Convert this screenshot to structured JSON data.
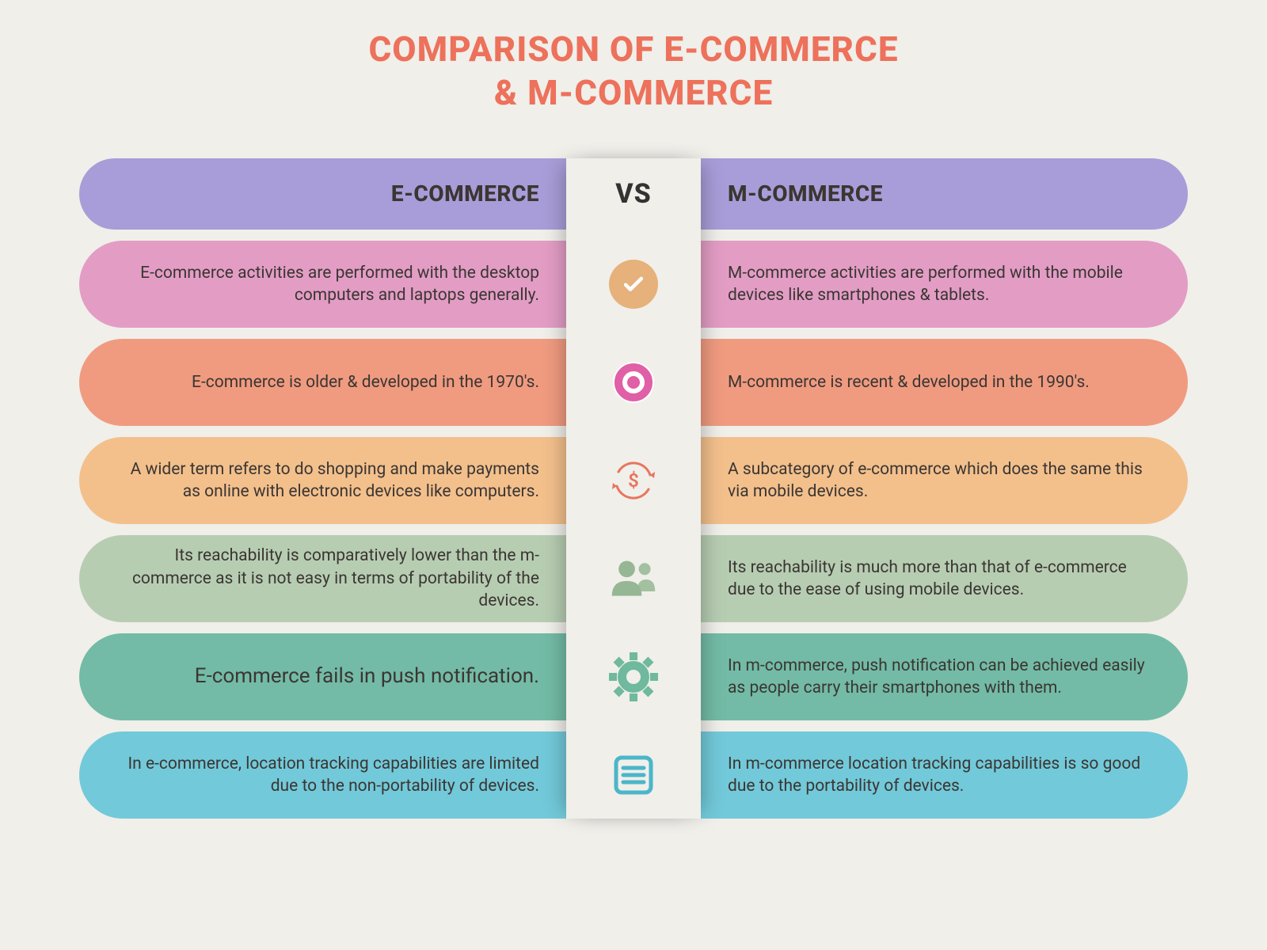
{
  "type": "infographic",
  "background_color": "#f0efea",
  "title": {
    "line1": "COMPARISON OF E-COMMERCE",
    "line2": "& M-COMMERCE",
    "color": "#ed715b",
    "fontsize": 44
  },
  "center": {
    "vs_label": "VS",
    "strip_bg": "#f0efea",
    "shadow": "rgba(0,0,0,.25)"
  },
  "header": {
    "left_label": "E-COMMERCE",
    "right_label": "M-COMMERCE",
    "bg": "#a89dd8",
    "text_color": "#3b3633"
  },
  "rows": [
    {
      "left": "E-commerce activities are performed with the desktop computers and laptops generally.",
      "right": "M-commerce activities are performed with the mobile devices like smartphones & tablets.",
      "bg": "#e39dc5",
      "icon": "check",
      "icon_color": "#ffffff",
      "icon_bg": "#e6b17a"
    },
    {
      "left": "E-commerce is older & developed in the 1970's.",
      "right": "M-commerce is recent & developed in the 1990's.",
      "bg": "#f09b80",
      "icon": "ring",
      "icon_color": "#e05fa6",
      "icon_bg": "#ffffff"
    },
    {
      "left": "A wider term refers to do shopping and make payments as online with electronic devices like computers.",
      "right": "A subcategory of e-commerce which does the same this via mobile devices.",
      "bg": "#f3c08c",
      "icon": "dollar-cycle",
      "icon_color": "#e8755f",
      "icon_bg": "transparent"
    },
    {
      "left": "Its reachability is comparatively lower than the m-commerce as it is not easy in terms of portability of the devices.",
      "right": "Its reachability is much more than that of e-commerce due to the ease of using mobile devices.",
      "bg": "#b7cdb2",
      "icon": "people",
      "icon_color": "#95b793",
      "icon_bg": "transparent"
    },
    {
      "left": "E-commerce fails in push notification.",
      "right": "In m-commerce, push notification can be achieved easily as people carry their smartphones with them.",
      "bg": "#73bba6",
      "icon": "gear",
      "icon_color": "#6fb99e",
      "icon_bg": "transparent",
      "left_fontsize": 26
    },
    {
      "left": "In e-commerce, location tracking capabilities are limited due to the non-portability of devices.",
      "right": "In m-commerce location tracking capabilities is so good due to the portability of devices.",
      "bg": "#72c9d9",
      "icon": "list",
      "icon_color": "#4bb6c9",
      "icon_bg": "transparent"
    }
  ]
}
